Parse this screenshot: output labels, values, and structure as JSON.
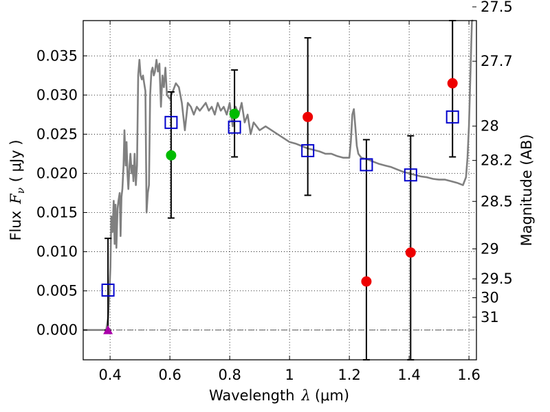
{
  "chart_data": {
    "type": "scatter",
    "xlabel": "Wavelength",
    "xlabel_symbol": "λ",
    "xlabel_unit": "(μm)",
    "ylabel": "Flux",
    "ylabel_symbol": "F",
    "ylabel_subscript": "ν",
    "ylabel_unit": "( μJy )",
    "y2label": "Magnitude (AB)",
    "xlim": [
      0.31,
      1.625
    ],
    "ylim": [
      -0.0038,
      0.0395
    ],
    "grid": true,
    "x_ticks": [
      {
        "value": 0.4,
        "label": "0.4"
      },
      {
        "value": 0.6,
        "label": "0.6"
      },
      {
        "value": 0.8,
        "label": "0.8"
      },
      {
        "value": 1.0,
        "label": "1"
      },
      {
        "value": 1.2,
        "label": "1.2"
      },
      {
        "value": 1.4,
        "label": "1.4"
      },
      {
        "value": 1.6,
        "label": "1.6"
      }
    ],
    "y_ticks": [
      {
        "value": 0.0,
        "label": "0.000"
      },
      {
        "value": 0.005,
        "label": "0.005"
      },
      {
        "value": 0.01,
        "label": "0.010"
      },
      {
        "value": 0.015,
        "label": "0.015"
      },
      {
        "value": 0.02,
        "label": "0.020"
      },
      {
        "value": 0.025,
        "label": "0.025"
      },
      {
        "value": 0.03,
        "label": "0.030"
      },
      {
        "value": 0.035,
        "label": "0.035"
      }
    ],
    "mag_ticks": [
      {
        "mag": 27.5,
        "label": "27.5"
      },
      {
        "mag": 27.7,
        "label": "27.7"
      },
      {
        "mag": 28.0,
        "label": "28"
      },
      {
        "mag": 28.2,
        "label": "28.2"
      },
      {
        "mag": 28.5,
        "label": "28.5"
      },
      {
        "mag": 29.0,
        "label": "29"
      },
      {
        "mag": 29.5,
        "label": "29.5"
      },
      {
        "mag": 30.0,
        "label": "30"
      },
      {
        "mag": 31.0,
        "label": "31"
      }
    ],
    "colors": {
      "sed": "#808080",
      "model": "#0000cc",
      "detected": "#00bb00",
      "measured": "#ee0000",
      "upper_limit": "#aa00aa",
      "errorbar": "#000000",
      "zero_line": "#555555"
    },
    "sed_template": {
      "name": "SED model spectrum",
      "x": [
        0.31,
        0.387,
        0.393,
        0.397,
        0.401,
        0.404,
        0.408,
        0.412,
        0.415,
        0.418,
        0.421,
        0.425,
        0.428,
        0.432,
        0.435,
        0.438,
        0.441,
        0.445,
        0.448,
        0.452,
        0.455,
        0.458,
        0.461,
        0.465,
        0.468,
        0.472,
        0.475,
        0.478,
        0.482,
        0.486,
        0.49,
        0.494,
        0.498,
        0.502,
        0.506,
        0.51,
        0.514,
        0.518,
        0.522,
        0.526,
        0.53,
        0.534,
        0.538,
        0.542,
        0.546,
        0.55,
        0.555,
        0.56,
        0.565,
        0.57,
        0.575,
        0.58,
        0.585,
        0.59,
        0.6,
        0.61,
        0.62,
        0.63,
        0.64,
        0.65,
        0.66,
        0.67,
        0.68,
        0.69,
        0.7,
        0.71,
        0.72,
        0.73,
        0.74,
        0.75,
        0.76,
        0.77,
        0.78,
        0.79,
        0.8,
        0.81,
        0.82,
        0.83,
        0.84,
        0.85,
        0.86,
        0.87,
        0.88,
        0.89,
        0.9,
        0.92,
        0.94,
        0.96,
        0.98,
        1.0,
        1.02,
        1.04,
        1.06,
        1.08,
        1.1,
        1.12,
        1.14,
        1.16,
        1.18,
        1.2,
        1.205,
        1.21,
        1.215,
        1.22,
        1.225,
        1.23,
        1.24,
        1.26,
        1.28,
        1.3,
        1.32,
        1.34,
        1.36,
        1.38,
        1.4,
        1.42,
        1.44,
        1.46,
        1.48,
        1.5,
        1.52,
        1.54,
        1.56,
        1.58,
        1.59,
        1.595,
        1.6,
        1.603,
        1.606,
        1.608,
        1.61,
        1.612,
        1.614
      ],
      "y": [
        0.0,
        0.0,
        0.0015,
        0.004,
        0.008,
        0.0145,
        0.0125,
        0.0165,
        0.011,
        0.016,
        0.0105,
        0.0155,
        0.0165,
        0.0175,
        0.012,
        0.017,
        0.018,
        0.021,
        0.0255,
        0.021,
        0.024,
        0.02,
        0.018,
        0.021,
        0.0225,
        0.02,
        0.021,
        0.019,
        0.0225,
        0.0185,
        0.021,
        0.0325,
        0.0345,
        0.0325,
        0.032,
        0.0325,
        0.0315,
        0.0305,
        0.015,
        0.0175,
        0.0185,
        0.03,
        0.033,
        0.0335,
        0.0325,
        0.033,
        0.0345,
        0.033,
        0.034,
        0.0285,
        0.0325,
        0.031,
        0.0335,
        0.03,
        0.0295,
        0.0305,
        0.0315,
        0.031,
        0.029,
        0.0255,
        0.029,
        0.0285,
        0.0275,
        0.0285,
        0.028,
        0.0285,
        0.029,
        0.028,
        0.0285,
        0.0275,
        0.029,
        0.028,
        0.0285,
        0.0275,
        0.029,
        0.026,
        0.0285,
        0.0275,
        0.029,
        0.0265,
        0.0275,
        0.025,
        0.0265,
        0.026,
        0.0255,
        0.026,
        0.0255,
        0.025,
        0.0245,
        0.024,
        0.0238,
        0.0235,
        0.0232,
        0.023,
        0.0228,
        0.0225,
        0.0225,
        0.0222,
        0.022,
        0.022,
        0.024,
        0.0275,
        0.0282,
        0.026,
        0.0235,
        0.0225,
        0.022,
        0.0218,
        0.0215,
        0.0212,
        0.021,
        0.0208,
        0.0205,
        0.0202,
        0.02,
        0.0198,
        0.0196,
        0.0195,
        0.0193,
        0.0192,
        0.0192,
        0.019,
        0.0188,
        0.0185,
        0.0195,
        0.022,
        0.026,
        0.03,
        0.034,
        0.037,
        0.0395,
        0.0395,
        0.0395
      ]
    },
    "series": [
      {
        "name": "model photometry",
        "marker": "open-square",
        "x": [
          0.393,
          0.604,
          0.816,
          1.061,
          1.257,
          1.405,
          1.545
        ],
        "y": [
          0.0051,
          0.0265,
          0.0259,
          0.0229,
          0.0211,
          0.0198,
          0.0272
        ]
      },
      {
        "name": "detections",
        "marker": "filled-circle",
        "color_key": "detected",
        "x": [
          0.604,
          0.816
        ],
        "y": [
          0.0223,
          0.0276
        ]
      },
      {
        "name": "measurements",
        "marker": "filled-circle",
        "color_key": "measured",
        "x": [
          1.061,
          1.257,
          1.405,
          1.545
        ],
        "y": [
          0.0272,
          0.0062,
          0.0099,
          0.0315
        ]
      },
      {
        "name": "upper limit",
        "marker": "filled-triangle",
        "color_key": "upper_limit",
        "x": [
          0.393
        ],
        "y": [
          0.0
        ]
      }
    ],
    "errorbars": [
      {
        "x": 0.393,
        "low": 0.0,
        "high": 0.0117
      },
      {
        "x": 0.604,
        "low": 0.0143,
        "high": 0.0304
      },
      {
        "x": 0.816,
        "low": 0.0221,
        "high": 0.0332
      },
      {
        "x": 1.061,
        "low": 0.0172,
        "high": 0.0373
      },
      {
        "x": 1.257,
        "low": -0.0038,
        "high": 0.0243
      },
      {
        "x": 1.405,
        "low": -0.0038,
        "high": 0.0248
      },
      {
        "x": 1.545,
        "low": 0.0221,
        "high": 0.0395
      }
    ]
  }
}
